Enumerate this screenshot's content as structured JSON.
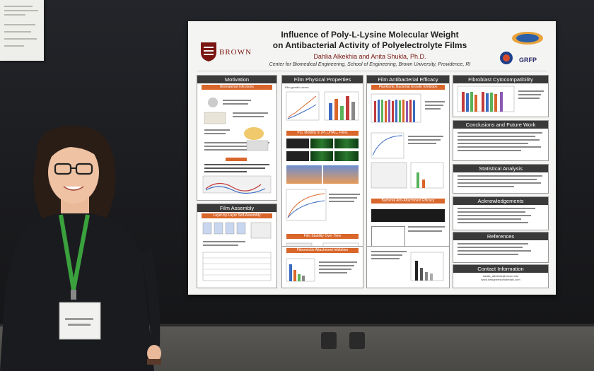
{
  "poster": {
    "title_line1": "Influence of Poly-L-Lysine Molecular Weight",
    "title_line2": "on Antibacterial Activity of Polyelectrolyte Films",
    "authors": "Dahlia Alkekhia and Anita Shukla, Ph.D.",
    "affiliation": "Center for Biomedical Engineering, School of Engineering, Brown University, Providence, RI",
    "university_logo_text": "BROWN",
    "sponsor_logo_text": "GRFP",
    "sections": {
      "motivation": "Motivation",
      "motivation_sub": "Biomaterial Infections",
      "film_physical": "Film Physical Properties",
      "film_growth": "Film growth curves",
      "pll_mobility": "PLL Mobility in (PLL/HA)₁₀ Films",
      "antibacterial": "Film Antibacterial Efficacy",
      "planktonic": "Planktonic Bacterial Growth Inhibition",
      "anti_attachment": "Bacterial Anti-Attachment Efficacy",
      "fibroblast": "Fibroblast Cytocompatibility",
      "conclusions": "Conclusions and Future Work",
      "statistical": "Statistical Analysis",
      "acknowledgements": "Acknowledgements",
      "references": "References",
      "contact": "Contact Information",
      "film_assembly": "Film Assembly",
      "film_assembly_sub": "Layer-by-Layer Self-Assembly",
      "film_stability": "Film Stability Over Time",
      "fibronectin": "Fibronectin Attachment Inhibition"
    },
    "contact_email": "dahlia_alkekhia@brown.edu",
    "contact_web": "www.designerbiomaterials.com"
  },
  "colors": {
    "header_dark": "#3a3a3a",
    "accent_orange": "#d9662a",
    "brown_red": "#7a1612",
    "lanyard_green": "#3aa13d"
  }
}
